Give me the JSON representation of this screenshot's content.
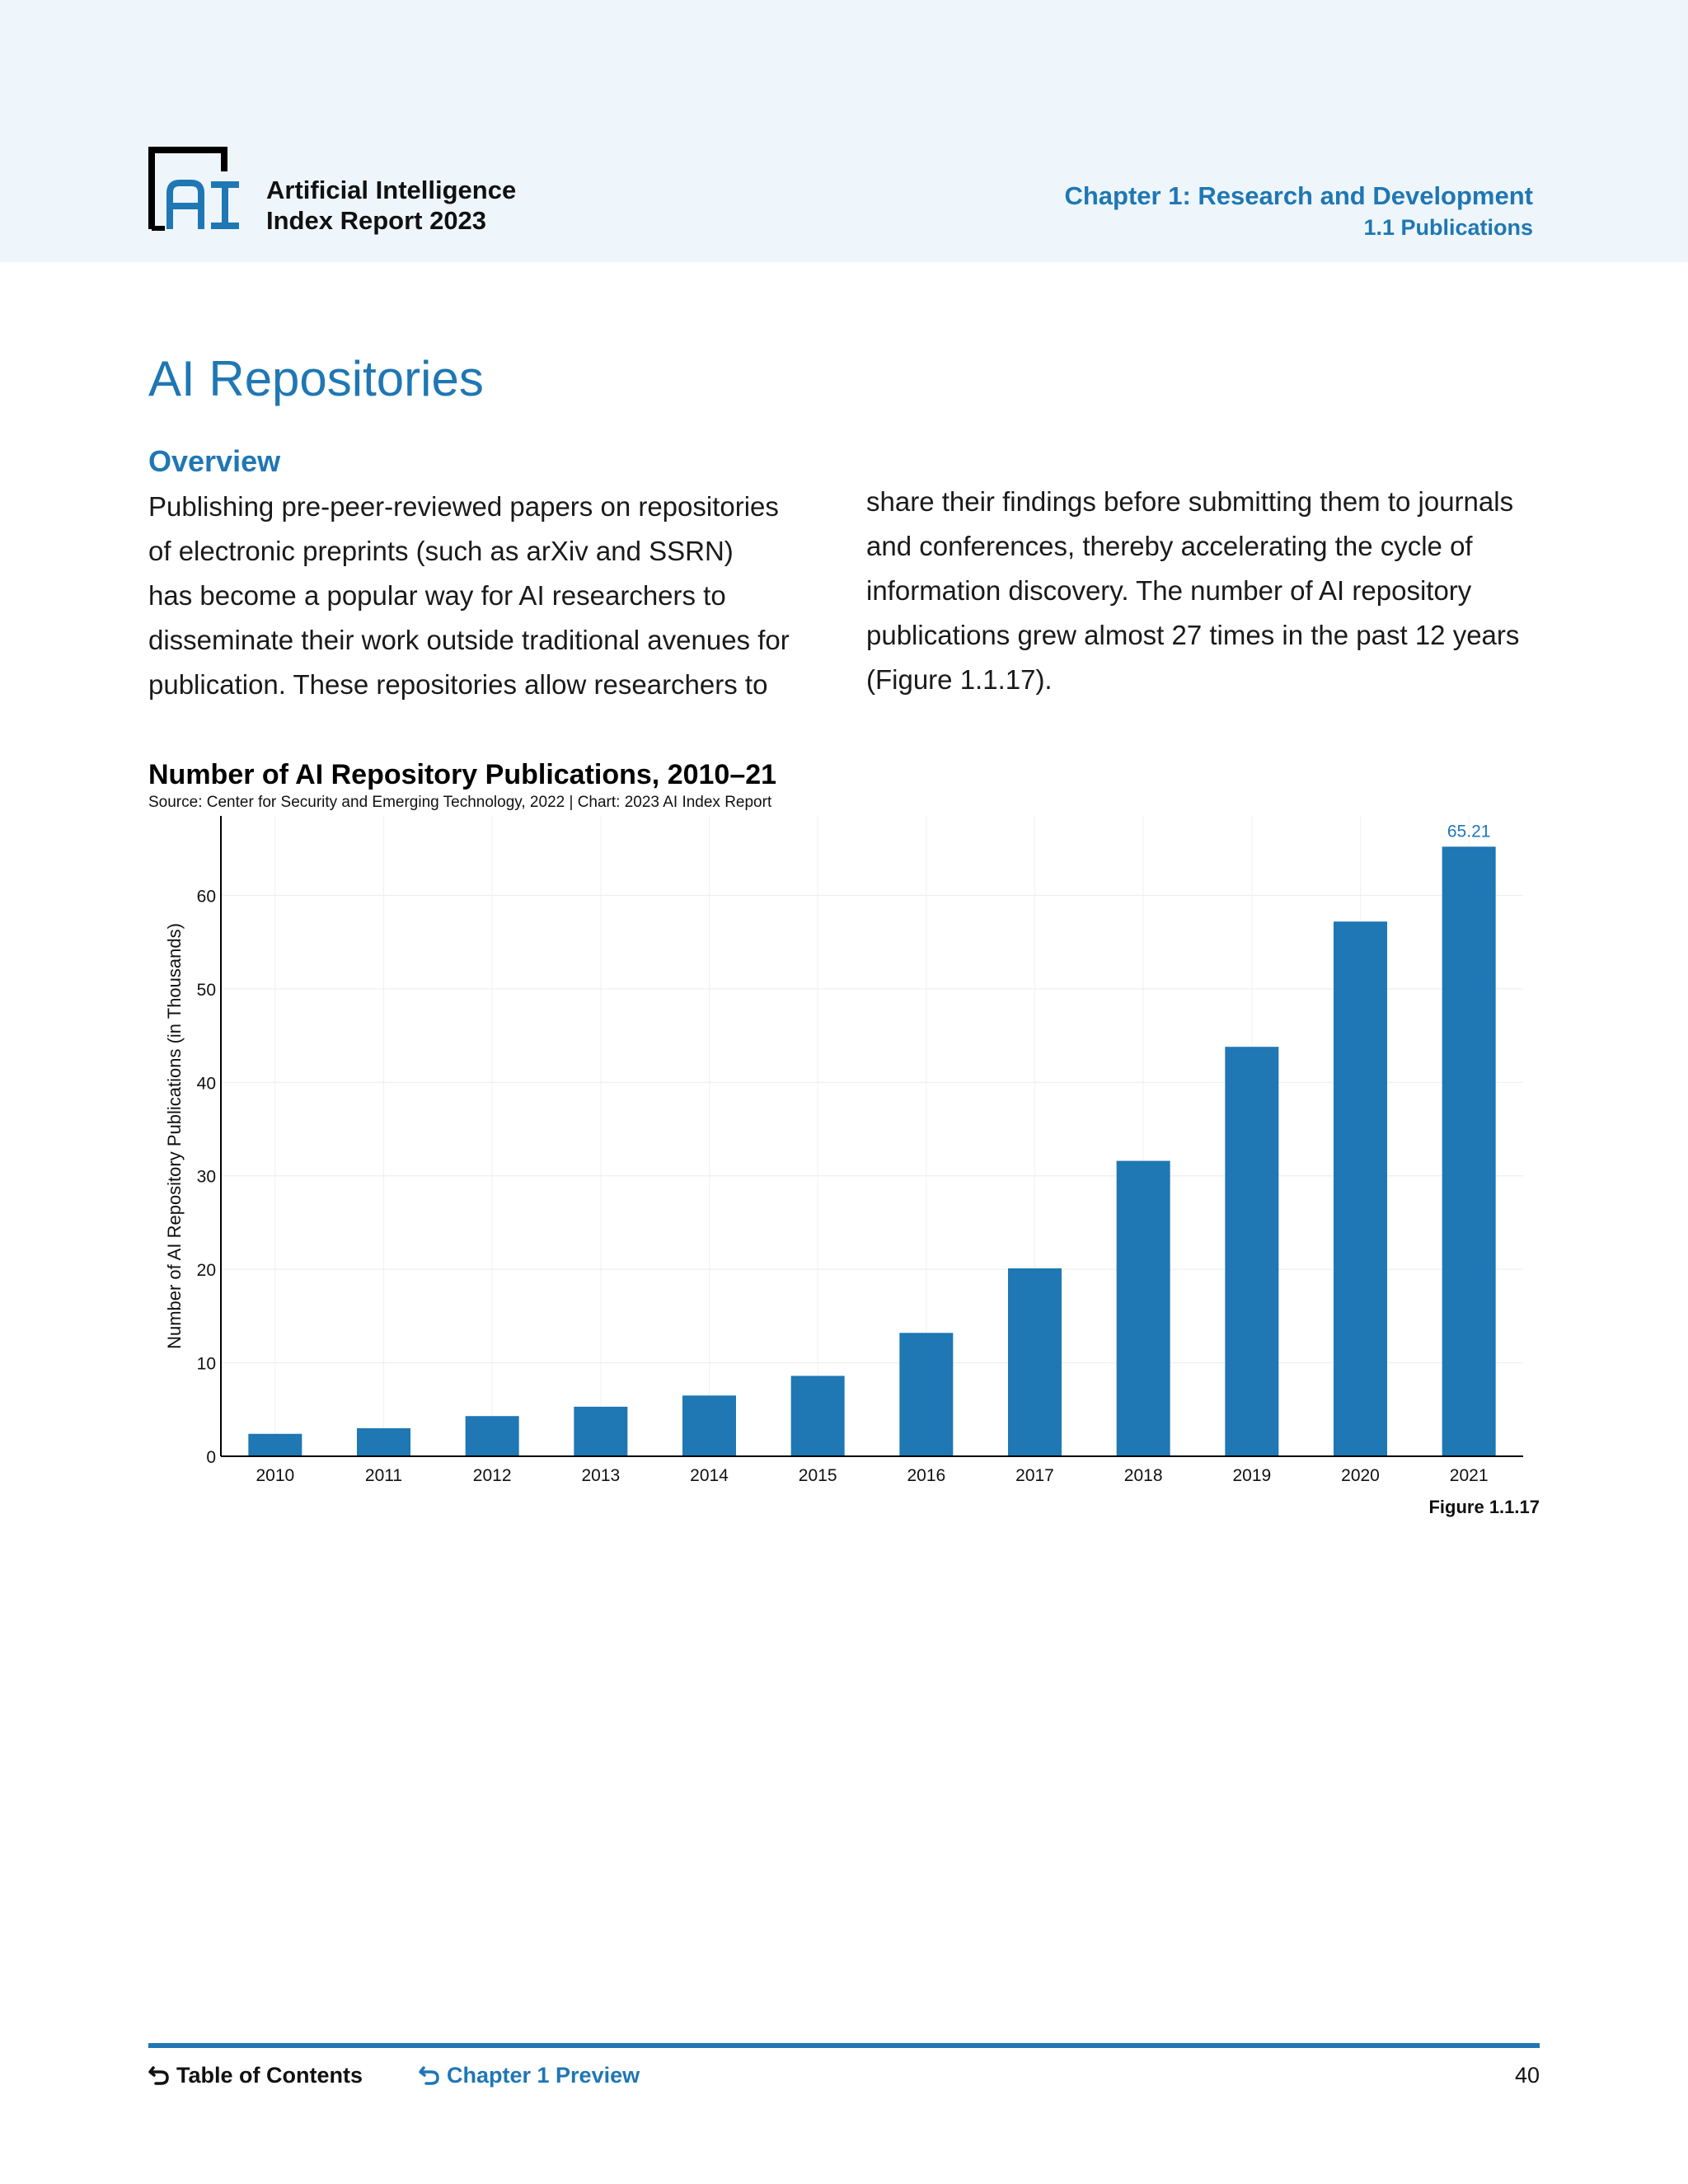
{
  "header": {
    "report_line1": "Artificial Intelligence",
    "report_line2": "Index Report 2023",
    "chapter": "Chapter 1: Research and Development",
    "section": "1.1 Publications"
  },
  "page_title": "AI Repositories",
  "overview_heading": "Overview",
  "col1_lines": [
    "Publishing pre-peer-reviewed papers on repositories",
    "of electronic preprints (such as arXiv and SSRN)",
    "has become a popular way for AI researchers to",
    "disseminate their work outside traditional avenues for",
    "publication. These repositories allow researchers to"
  ],
  "col2_lines": [
    "share their findings before submitting them to journals",
    "and conferences, thereby accelerating the cycle of",
    "information discovery. The number of AI repository",
    "publications grew almost 27 times in the past 12 years",
    "(Figure 1.1.17)."
  ],
  "chart_data": {
    "type": "bar",
    "title": "Number of AI Repository Publications, 2010–21",
    "subtitle": "Source: Center for Security and Emerging Technology, 2022 | Chart: 2023 AI Index Report",
    "xlabel": "",
    "ylabel": "Number of AI Repository Publications (in Thousands)",
    "categories": [
      "2010",
      "2011",
      "2012",
      "2013",
      "2014",
      "2015",
      "2016",
      "2017",
      "2018",
      "2019",
      "2020",
      "2021"
    ],
    "values": [
      2.4,
      3.0,
      4.3,
      5.3,
      6.5,
      8.6,
      13.2,
      20.1,
      31.6,
      43.8,
      57.2,
      65.21
    ],
    "labeled_value": "65.21",
    "ylim": [
      0,
      68.5
    ],
    "yticks": [
      0,
      10,
      20,
      30,
      40,
      50,
      60
    ],
    "grid": true,
    "bar_color": "#1f77b4"
  },
  "figure_label": "Figure 1.1.17",
  "footer": {
    "toc": "Table of Contents",
    "chapter_preview": "Chapter 1 Preview",
    "page_number": "40"
  }
}
